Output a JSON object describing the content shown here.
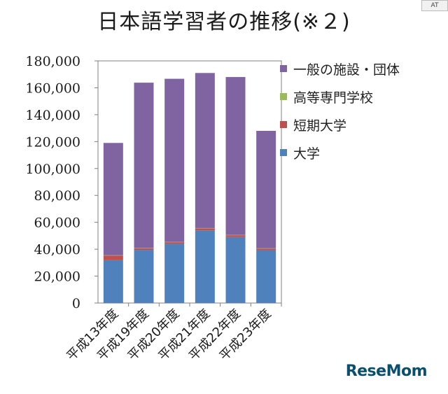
{
  "chart_data": {
    "type": "bar",
    "stacked": true,
    "title": "日本語学習者の推移(※２)",
    "xlabel": "",
    "ylabel": "",
    "categories": [
      "平成13年度",
      "平成19年度",
      "平成20年度",
      "平成21年度",
      "平成22年度",
      "平成23年度"
    ],
    "ylim": [
      0,
      180000
    ],
    "yticks": [
      "0",
      "20,000",
      "40,000",
      "60,000",
      "80,000",
      "100,000",
      "120,000",
      "140,000",
      "160,000",
      "180,000"
    ],
    "grid": false,
    "legend_position": "right",
    "series": [
      {
        "name": "大学",
        "color": "#4f81bd",
        "values": [
          31800,
          39500,
          44000,
          54000,
          49000,
          39300
        ]
      },
      {
        "name": "短期大学",
        "color": "#c0504d",
        "values": [
          3500,
          1200,
          1200,
          1500,
          1400,
          1200
        ]
      },
      {
        "name": "高等専門学校",
        "color": "#9bbb59",
        "values": [
          200,
          200,
          200,
          200,
          200,
          200
        ]
      },
      {
        "name": "一般の施設・団体",
        "color": "#8064a2",
        "values": [
          83500,
          122900,
          121300,
          115300,
          117400,
          87300
        ]
      }
    ]
  },
  "logo_text": "ReseMom",
  "corner_badge": "AT"
}
